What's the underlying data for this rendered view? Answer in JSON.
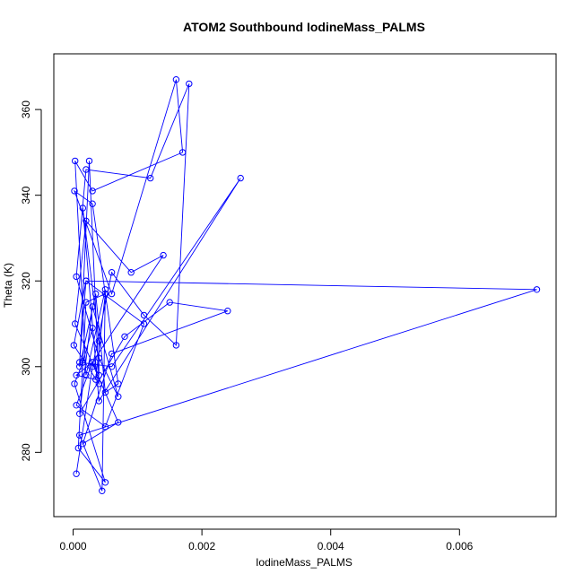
{
  "chart_data": {
    "type": "line",
    "title": "ATOM2 Southbound IodineMass_PALMS",
    "xlabel": "IodineMass_PALMS",
    "ylabel": "Theta (K)",
    "xlim": [
      -0.0003,
      0.0075
    ],
    "ylim": [
      265,
      373
    ],
    "x_ticks": [
      {
        "value": 0.0,
        "label": "0.000"
      },
      {
        "value": 0.002,
        "label": "0.002"
      },
      {
        "value": 0.004,
        "label": "0.004"
      },
      {
        "value": 0.006,
        "label": "0.006"
      }
    ],
    "y_ticks": [
      {
        "value": 280,
        "label": "280"
      },
      {
        "value": 300,
        "label": "300"
      },
      {
        "value": 320,
        "label": "320"
      },
      {
        "value": 340,
        "label": "340"
      },
      {
        "value": 360,
        "label": "360"
      }
    ],
    "grid": false,
    "markers": "open-circle",
    "series": [
      {
        "color": "#0000ff",
        "x": [
          5e-05,
          0.0003,
          0.0006,
          0.0011,
          0.0016,
          0.0018,
          0.0012,
          0.0002,
          5e-05,
          0.0004,
          0.0007,
          0.0003,
          0.0001,
          0.0008,
          0.0015,
          0.0024,
          0.0006,
          0.00015,
          0.0007,
          3e-05,
          0.0002,
          0.0009,
          0.0014,
          0.0003,
          5e-05,
          0.0005,
          0.0011,
          0.0002,
          1e-05,
          0.0004,
          0.00025,
          0.0001,
          0.00035,
          0.0005,
          0.0007,
          0.0003,
          2e-05,
          0.0006,
          0.0016,
          0.0017,
          0.0003,
          3e-05,
          0.0002,
          0.0005,
          0.00045,
          0.0001,
          0.0072,
          0.0002,
          0.0001,
          0.0006,
          0.0026,
          0.0004,
          0.00015,
          0.0004,
          0.0004,
          0.0003,
          5e-05,
          0.00035,
          0.0005,
          0.0002,
          8e-05,
          0.0005,
          2e-05,
          0.00015,
          0.0003
        ],
        "y": [
          275,
          300,
          322,
          312,
          305,
          366,
          344,
          346,
          321,
          302,
          293,
          314,
          289,
          307,
          315,
          313,
          303,
          282,
          287,
          310,
          334,
          322,
          326,
          301,
          291,
          286,
          310,
          320,
          305,
          296,
          348,
          300,
          317,
          294,
          296,
          338,
          341,
          317,
          367,
          350,
          341,
          348,
          298,
          318,
          271,
          284,
          318,
          320,
          301,
          300,
          344,
          292,
          337,
          306,
          298,
          301,
          298,
          297,
          317,
          315,
          281,
          273,
          296,
          301,
          309
        ]
      }
    ]
  }
}
